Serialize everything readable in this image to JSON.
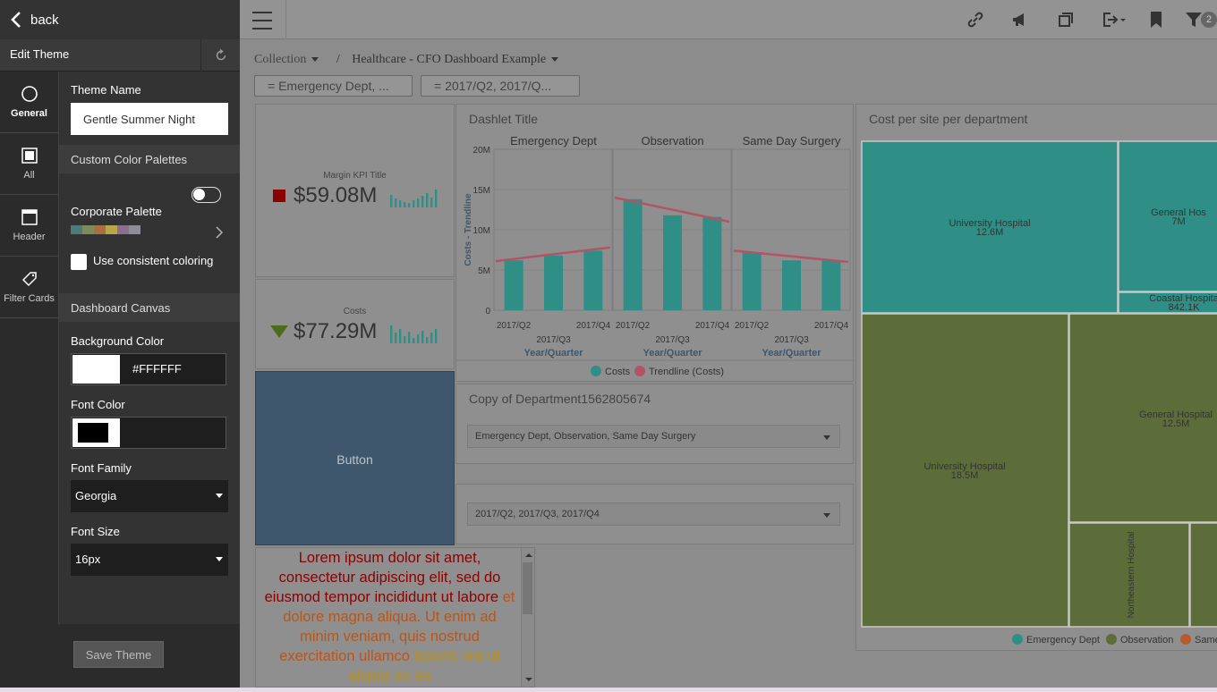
{
  "editor": {
    "back_label": "back",
    "title": "Edit Theme",
    "tabs": [
      {
        "label": "General",
        "icon": "circle-icon"
      },
      {
        "label": "All",
        "icon": "square-icon"
      },
      {
        "label": "Header",
        "icon": "window-icon"
      },
      {
        "label": "Filter Cards",
        "icon": "tag-icon"
      }
    ],
    "theme_name_label": "Theme Name",
    "theme_name_value": "Gentle Summer Night",
    "custom_palettes_section": "Custom Color Palettes",
    "corporate_palette_label": "Corporate Palette",
    "palette_colors": [
      "#4f7a7a",
      "#7d8a5a",
      "#a8703f",
      "#b7a64a",
      "#8c6f8f",
      "#8f8c99"
    ],
    "consistent_coloring_label": "Use consistent coloring",
    "dashboard_canvas_section": "Dashboard Canvas",
    "bg_color_label": "Background Color",
    "bg_color_value": "#FFFFFF",
    "font_color_label": "Font Color",
    "font_color_value": "",
    "font_family_label": "Font Family",
    "font_family_value": "Georgia",
    "font_size_label": "Font Size",
    "font_size_value": "16px",
    "save_label": "Save Theme"
  },
  "header": {
    "breadcrumb_collection": "Collection",
    "breadcrumb_sep": "/",
    "breadcrumb_title": "Healthcare - CFO Dashboard Example",
    "filter_badge": "2",
    "filter_pills": [
      "= Emergency Dept, ...",
      "= 2017/Q2, 2017/Q..."
    ]
  },
  "kpi1": {
    "title": "Margin KPI Title",
    "value": "$59.08M",
    "color": "#8b0000"
  },
  "kpi2": {
    "title": "Costs",
    "value": "$77.29M",
    "color": "#4d6b1a"
  },
  "button_card": {
    "label": "Button"
  },
  "chart_data": [
    {
      "type": "bar",
      "title": "Dashlet Title",
      "ylabel": "Costs - Trendline",
      "xlabel": "Year/Quarter",
      "yticks": [
        "20M",
        "15M",
        "10M",
        "5M",
        "0"
      ],
      "ylim": [
        0,
        20
      ],
      "panels": [
        {
          "name": "Emergency Dept",
          "categories": [
            "2017/Q2",
            "2017/Q3",
            "2017/Q4"
          ],
          "values": [
            6.2,
            6.8,
            7.4
          ],
          "trend": [
            6.1,
            7.8
          ]
        },
        {
          "name": "Observation",
          "categories": [
            "2017/Q2",
            "2017/Q3",
            "2017/Q4"
          ],
          "values": [
            13.8,
            11.8,
            11.6
          ],
          "trend": [
            14.0,
            11.0
          ]
        },
        {
          "name": "Same Day Surgery",
          "categories": [
            "2017/Q2",
            "2017/Q3",
            "2017/Q4"
          ],
          "values": [
            7.2,
            6.2,
            6.2
          ],
          "trend": [
            7.4,
            6.0
          ]
        }
      ],
      "tick_labels_bottom": [
        "2017/Q2",
        "2017/Q4"
      ],
      "tick_labels_mid": "2017/Q3",
      "legend": [
        "Costs",
        "Trendline (Costs)"
      ],
      "bar_color": "#2f8f87",
      "trend_color": "#b05565"
    },
    {
      "type": "treemap",
      "title": "Cost per site per department",
      "cells": [
        {
          "label": "University Hospital",
          "value": "12.6M",
          "group": "Emergency Dept"
        },
        {
          "label": "General Hos",
          "value": "7M",
          "group": "Emergency Dept"
        },
        {
          "label": "Coastal Hospita",
          "value": "842.1K",
          "group": "Emergency Dept"
        },
        {
          "label": "University Hospital",
          "value": "18.5M",
          "group": "Observation"
        },
        {
          "label": "General Hospital",
          "value": "12.5M",
          "group": "Observation"
        },
        {
          "label": "Northeastern Hospital",
          "value": "",
          "group": "Observation"
        }
      ],
      "legend": [
        "Emergency Dept",
        "Observation",
        "Same"
      ],
      "colors": {
        "Emergency Dept": "#2f8f87",
        "Observation": "#5d6d3a",
        "Same": "#b75a2e"
      }
    }
  ],
  "dept_filter": {
    "title": "Copy of Department1562805674",
    "value": "Emergency Dept, Observation, Same Day Surgery"
  },
  "quarter_filter": {
    "value": "2017/Q2, 2017/Q3, 2017/Q4"
  },
  "lorem": {
    "part1": "Lorem ipsum dolor sit amet, consectetur adipiscing elit, sed do eiusmod tempor incididunt ut labore",
    "part2": "et dolore magna aliqua. Ut enim ad minim veniam, quis nostrud exercitation ullamco",
    "part3": "laboris nisi ut aliquip ex ea"
  }
}
